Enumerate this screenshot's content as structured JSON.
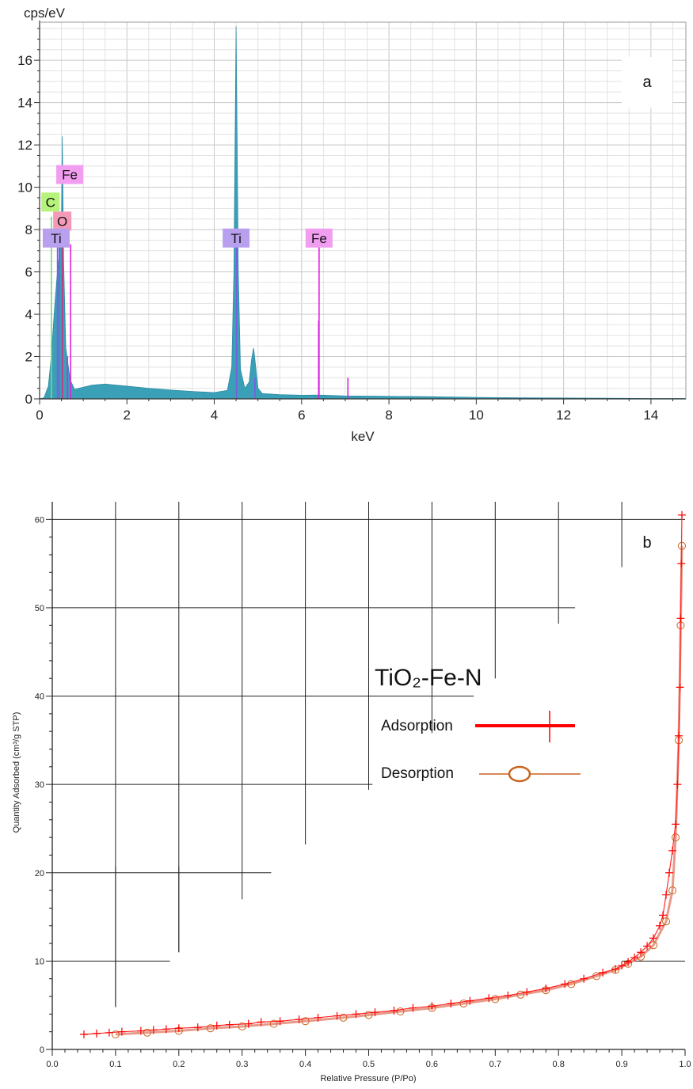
{
  "chart_data": [
    {
      "type": "area",
      "panel_label": "a",
      "ylabel": "cps/eV",
      "xlabel": "keV",
      "xlim": [
        0,
        14.8
      ],
      "ylim": [
        0,
        17.8
      ],
      "x_ticks": [
        "0",
        "2",
        "4",
        "6",
        "8",
        "10",
        "12",
        "14"
      ],
      "y_ticks": [
        "0",
        "2",
        "4",
        "6",
        "8",
        "10",
        "12",
        "14",
        "16"
      ],
      "grid": true,
      "spectrum": {
        "x": [
          0.0,
          0.1,
          0.2,
          0.25,
          0.28,
          0.3,
          0.35,
          0.4,
          0.45,
          0.5,
          0.52,
          0.55,
          0.6,
          0.7,
          0.8,
          1.0,
          1.2,
          1.5,
          2.0,
          2.5,
          3.0,
          3.5,
          4.0,
          4.3,
          4.4,
          4.45,
          4.5,
          4.55,
          4.6,
          4.7,
          4.8,
          4.85,
          4.9,
          4.95,
          5.0,
          5.1,
          5.5,
          6.0,
          6.4,
          7.0,
          8.0,
          9.0,
          10.0,
          11.0,
          12.0,
          13.0,
          14.0,
          14.8
        ],
        "y": [
          0.0,
          0.05,
          0.6,
          1.6,
          2.3,
          3.0,
          4.5,
          5.8,
          6.8,
          7.8,
          12.4,
          6.5,
          2.4,
          0.9,
          0.45,
          0.55,
          0.65,
          0.7,
          0.6,
          0.5,
          0.42,
          0.35,
          0.3,
          0.4,
          1.5,
          6.0,
          17.6,
          6.0,
          1.4,
          0.5,
          0.8,
          1.8,
          2.4,
          1.5,
          0.5,
          0.25,
          0.2,
          0.17,
          0.18,
          0.14,
          0.12,
          0.1,
          0.07,
          0.05,
          0.04,
          0.03,
          0.02,
          0.02
        ]
      },
      "element_lines": [
        {
          "x": 0.27,
          "y": 8.6,
          "color": "#7bd77b"
        },
        {
          "x": 0.41,
          "y": 7.3,
          "color": "#7b5be0"
        },
        {
          "x": 0.45,
          "y": 7.3,
          "color": "#7b5be0"
        },
        {
          "x": 0.52,
          "y": 7.5,
          "color": "#d82a7a"
        },
        {
          "x": 0.64,
          "y": 2.0,
          "color": "#e020e0"
        },
        {
          "x": 0.71,
          "y": 7.3,
          "color": "#e020e0"
        },
        {
          "x": 4.51,
          "y": 7.3,
          "color": "#7b5be0"
        },
        {
          "x": 4.93,
          "y": 1.0,
          "color": "#7b5be0"
        },
        {
          "x": 6.4,
          "y": 7.3,
          "color": "#e020e0"
        },
        {
          "x": 6.39,
          "y": 3.7,
          "color": "#e020e0"
        },
        {
          "x": 7.06,
          "y": 1.0,
          "color": "#e020e0"
        }
      ],
      "element_labels": [
        {
          "text": "Fe",
          "x": 0.69,
          "y": 10.6,
          "color": "#f19ef1"
        },
        {
          "text": "C",
          "x": 0.25,
          "y": 9.3,
          "color": "#b6f37a"
        },
        {
          "text": "O",
          "x": 0.52,
          "y": 8.4,
          "color": "#f49ab8"
        },
        {
          "text": "Ti",
          "x": 0.38,
          "y": 7.6,
          "color": "#b9a0ee"
        },
        {
          "text": "Ti",
          "x": 4.5,
          "y": 7.6,
          "color": "#b9a0ee"
        },
        {
          "text": "Fe",
          "x": 6.4,
          "y": 7.6,
          "color": "#f19ef1"
        }
      ],
      "fill_color": "#3aa0b8"
    },
    {
      "type": "line",
      "panel_label": "b",
      "xlabel": "Relative Pressure (P/Po)",
      "ylabel": "Quantity Adsorbed (cm³/g STP)",
      "xlim": [
        0.0,
        1.0
      ],
      "ylim": [
        0,
        62
      ],
      "x_ticks": [
        "0.0",
        "0.1",
        "0.2",
        "0.3",
        "0.4",
        "0.5",
        "0.6",
        "0.7",
        "0.8",
        "0.9",
        "1.0"
      ],
      "y_ticks": [
        "0",
        "10",
        "20",
        "30",
        "40",
        "50",
        "60"
      ],
      "sample_label": "TiO₂-Fe-N",
      "legend": [
        {
          "name": "Adsorption",
          "color": "#ff0000",
          "marker": "cross"
        },
        {
          "name": "Desorption",
          "color": "#c8641e",
          "marker": "circle"
        }
      ],
      "series": [
        {
          "name": "Adsorption",
          "x": [
            0.05,
            0.07,
            0.09,
            0.11,
            0.14,
            0.16,
            0.18,
            0.2,
            0.23,
            0.26,
            0.28,
            0.31,
            0.33,
            0.36,
            0.39,
            0.42,
            0.45,
            0.48,
            0.51,
            0.54,
            0.57,
            0.6,
            0.63,
            0.66,
            0.69,
            0.72,
            0.75,
            0.78,
            0.81,
            0.84,
            0.87,
            0.89,
            0.9,
            0.91,
            0.92,
            0.93,
            0.94,
            0.95,
            0.96,
            0.965,
            0.97,
            0.975,
            0.98,
            0.985,
            0.988,
            0.99,
            0.992,
            0.993,
            0.994,
            0.995
          ],
          "y": [
            1.7,
            1.8,
            1.9,
            2.0,
            2.1,
            2.2,
            2.3,
            2.4,
            2.5,
            2.7,
            2.8,
            2.9,
            3.1,
            3.2,
            3.4,
            3.6,
            3.8,
            4.0,
            4.2,
            4.4,
            4.7,
            4.9,
            5.2,
            5.5,
            5.8,
            6.1,
            6.5,
            6.9,
            7.4,
            8.0,
            8.7,
            9.1,
            9.5,
            9.9,
            10.4,
            11.0,
            11.7,
            12.6,
            14.0,
            15.2,
            17.5,
            20.0,
            22.5,
            25.5,
            30.0,
            35.5,
            41.0,
            48.8,
            55.0,
            60.5
          ]
        },
        {
          "name": "Desorption",
          "x": [
            0.1,
            0.15,
            0.2,
            0.25,
            0.3,
            0.35,
            0.4,
            0.46,
            0.5,
            0.55,
            0.6,
            0.65,
            0.7,
            0.74,
            0.78,
            0.82,
            0.86,
            0.89,
            0.91,
            0.93,
            0.95,
            0.97,
            0.98,
            0.985,
            0.99,
            0.993,
            0.995
          ],
          "y": [
            1.7,
            1.9,
            2.1,
            2.4,
            2.6,
            2.9,
            3.2,
            3.6,
            3.9,
            4.3,
            4.7,
            5.2,
            5.7,
            6.2,
            6.7,
            7.4,
            8.3,
            9.0,
            9.7,
            10.5,
            11.8,
            14.5,
            18.0,
            24.0,
            35.0,
            48.0,
            57.0
          ]
        }
      ]
    }
  ]
}
